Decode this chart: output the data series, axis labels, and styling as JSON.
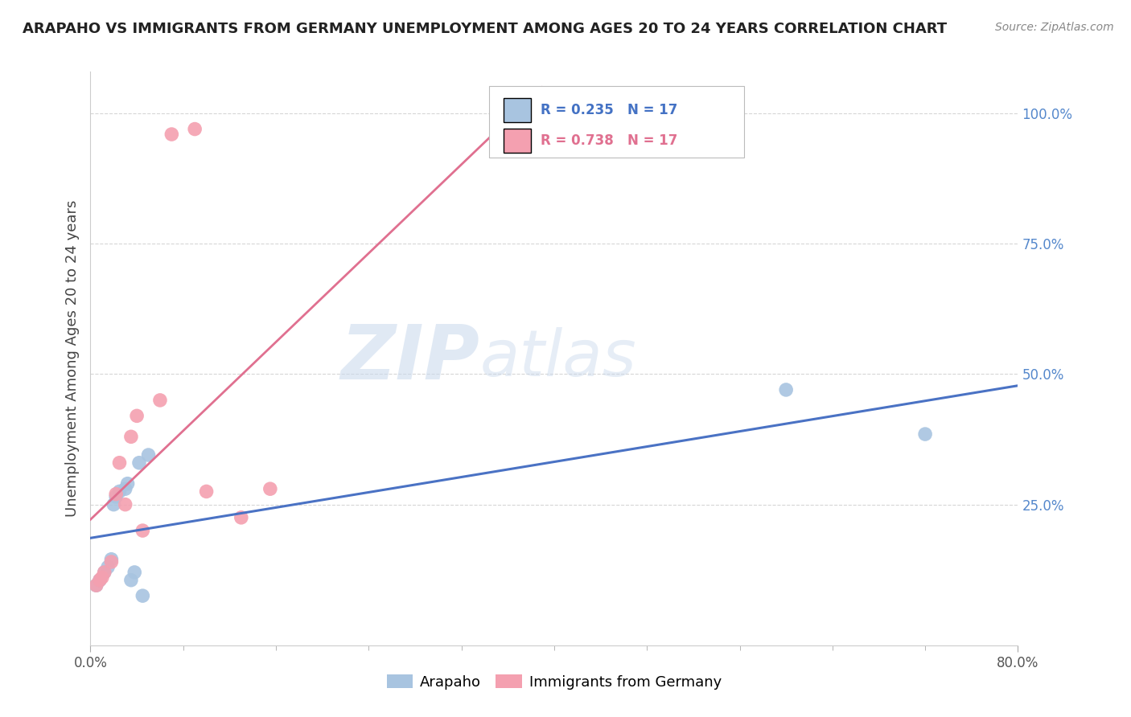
{
  "title": "ARAPAHO VS IMMIGRANTS FROM GERMANY UNEMPLOYMENT AMONG AGES 20 TO 24 YEARS CORRELATION CHART",
  "source": "Source: ZipAtlas.com",
  "ylabel": "Unemployment Among Ages 20 to 24 years",
  "xlim": [
    0.0,
    0.8
  ],
  "ylim": [
    -0.02,
    1.08
  ],
  "ytick_positions": [
    0.25,
    0.5,
    0.75,
    1.0
  ],
  "ytick_labels": [
    "25.0%",
    "50.0%",
    "75.0%",
    "100.0%"
  ],
  "arapaho_color": "#a8c4e0",
  "germany_color": "#f4a0b0",
  "arapaho_line_color": "#4a72c4",
  "germany_line_color": "#e07090",
  "legend_arapaho_label": "Arapaho",
  "legend_germany_label": "Immigrants from Germany",
  "R_arapaho": 0.235,
  "N_arapaho": 17,
  "R_germany": 0.738,
  "N_germany": 17,
  "arapaho_x": [
    0.005,
    0.008,
    0.012,
    0.015,
    0.018,
    0.02,
    0.022,
    0.025,
    0.03,
    0.032,
    0.035,
    0.038,
    0.042,
    0.045,
    0.05,
    0.6,
    0.72
  ],
  "arapaho_y": [
    0.095,
    0.105,
    0.12,
    0.13,
    0.145,
    0.25,
    0.265,
    0.275,
    0.28,
    0.29,
    0.105,
    0.12,
    0.33,
    0.075,
    0.345,
    0.47,
    0.385
  ],
  "germany_x": [
    0.005,
    0.008,
    0.01,
    0.012,
    0.018,
    0.022,
    0.025,
    0.03,
    0.035,
    0.04,
    0.045,
    0.06,
    0.07,
    0.09,
    0.1,
    0.13,
    0.155
  ],
  "germany_y": [
    0.095,
    0.105,
    0.11,
    0.12,
    0.14,
    0.27,
    0.33,
    0.25,
    0.38,
    0.42,
    0.2,
    0.45,
    0.96,
    0.97,
    0.275,
    0.225,
    0.28
  ]
}
